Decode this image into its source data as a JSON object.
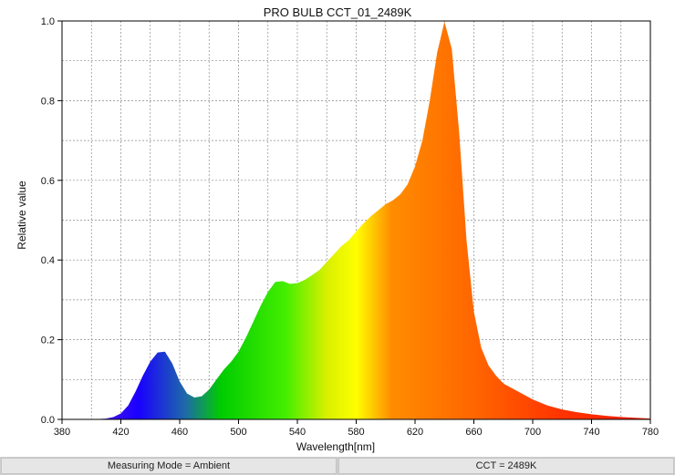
{
  "chart_data": {
    "type": "area",
    "title": "PRO BULB CCT_01_2489K",
    "xlabel": "Wavelength[nm]",
    "ylabel": "Relative value",
    "xlim": [
      380,
      780
    ],
    "ylim": [
      0,
      1.0
    ],
    "x_ticks": [
      380,
      420,
      460,
      500,
      540,
      580,
      620,
      660,
      700,
      740,
      780
    ],
    "x_tick_labels": [
      "380",
      "420",
      "460",
      "500",
      "540",
      "580",
      "620",
      "660",
      "700",
      "740",
      "780"
    ],
    "y_ticks": [
      0,
      0.2,
      0.4,
      0.6,
      0.8,
      1.0
    ],
    "y_tick_labels": [
      "0.0",
      "0.2",
      "0.4",
      "0.6",
      "0.8",
      "1.0"
    ],
    "grid": true,
    "fill": "spectral-rainbow",
    "series": [
      {
        "x": [
          380,
          390,
          400,
          410,
          415,
          420,
          425,
          430,
          435,
          440,
          445,
          450,
          455,
          460,
          465,
          470,
          475,
          480,
          485,
          490,
          495,
          500,
          505,
          510,
          515,
          520,
          525,
          530,
          535,
          540,
          545,
          550,
          555,
          560,
          565,
          570,
          575,
          580,
          585,
          590,
          595,
          600,
          605,
          610,
          615,
          620,
          625,
          630,
          635,
          640,
          645,
          650,
          655,
          660,
          665,
          670,
          675,
          680,
          690,
          700,
          710,
          720,
          730,
          740,
          750,
          760,
          770,
          780
        ],
        "values": [
          0.0,
          0.0,
          0.0,
          0.002,
          0.006,
          0.015,
          0.035,
          0.07,
          0.11,
          0.145,
          0.168,
          0.17,
          0.14,
          0.095,
          0.065,
          0.055,
          0.058,
          0.075,
          0.1,
          0.125,
          0.145,
          0.17,
          0.205,
          0.245,
          0.285,
          0.32,
          0.345,
          0.347,
          0.34,
          0.342,
          0.35,
          0.362,
          0.375,
          0.395,
          0.415,
          0.435,
          0.45,
          0.472,
          0.492,
          0.51,
          0.525,
          0.54,
          0.55,
          0.565,
          0.59,
          0.635,
          0.7,
          0.8,
          0.92,
          0.998,
          0.93,
          0.72,
          0.45,
          0.27,
          0.18,
          0.135,
          0.11,
          0.09,
          0.07,
          0.05,
          0.035,
          0.025,
          0.018,
          0.013,
          0.009,
          0.006,
          0.004,
          0.002
        ]
      }
    ]
  },
  "status": {
    "left": "Measuring Mode = Ambient",
    "right": "CCT = 2489K"
  },
  "colors": {
    "grid": "#8a8a8a",
    "axis": "#000000"
  }
}
